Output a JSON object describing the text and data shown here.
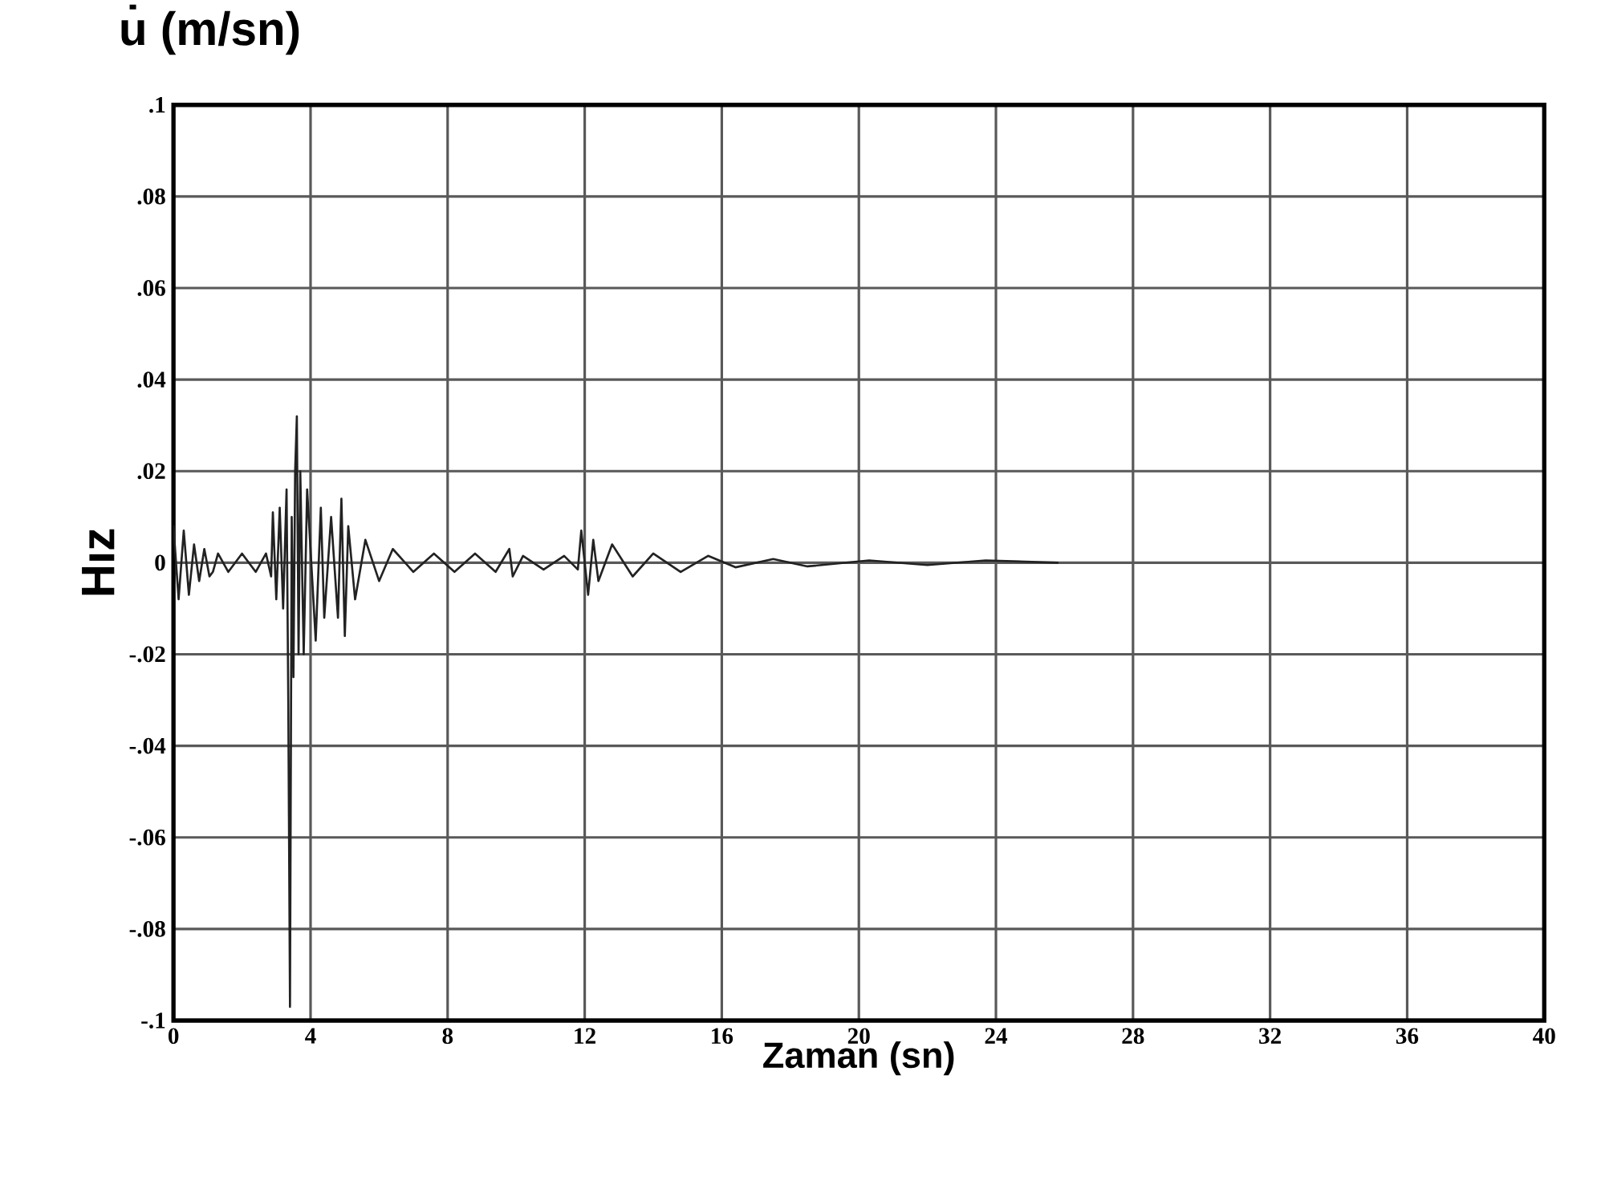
{
  "chart_data": {
    "type": "line",
    "title": "u̇ (m/sn)",
    "xlabel": "Zaman (sn)",
    "ylabel": "Hız",
    "xlim": [
      0,
      40
    ],
    "ylim": [
      -0.1,
      0.1
    ],
    "xticks": [
      0,
      4,
      8,
      12,
      16,
      20,
      24,
      28,
      32,
      36,
      40
    ],
    "yticks": [
      {
        "value": -0.1,
        "label": "-.1"
      },
      {
        "value": -0.08,
        "label": "-.08"
      },
      {
        "value": -0.06,
        "label": "-.06"
      },
      {
        "value": -0.04,
        "label": "-.04"
      },
      {
        "value": -0.02,
        "label": "-.02"
      },
      0,
      {
        "value": 0.02,
        "label": ".02"
      },
      {
        "value": 0.04,
        "label": ".04"
      },
      {
        "value": 0.06,
        "label": ".06"
      },
      {
        "value": 0.08,
        "label": ".08"
      },
      {
        "value": 0.1,
        "label": ".1"
      }
    ],
    "grid": true,
    "marker": "none",
    "line_style": "solid",
    "series": [
      {
        "color": "#222222",
        "x": [
          0,
          0.15,
          0.3,
          0.45,
          0.6,
          0.75,
          0.9,
          1.05,
          1.15,
          1.3,
          1.6,
          2.0,
          2.4,
          2.7,
          2.85,
          2.9,
          3.0,
          3.1,
          3.2,
          3.3,
          3.35,
          3.4,
          3.45,
          3.5,
          3.55,
          3.6,
          3.65,
          3.7,
          3.8,
          3.9,
          4.15,
          4.3,
          4.4,
          4.6,
          4.8,
          4.9,
          5.0,
          5.1,
          5.3,
          5.6,
          6.0,
          6.4,
          7.0,
          7.6,
          8.2,
          8.8,
          9.4,
          9.8,
          9.9,
          10.2,
          10.8,
          11.4,
          11.8,
          11.9,
          12.1,
          12.25,
          12.4,
          12.8,
          13.4,
          14.0,
          14.8,
          15.6,
          16.4,
          17.5,
          18.5,
          20.3,
          22.0,
          23.7,
          25.8
        ],
        "values": [
          0.008,
          -0.008,
          0.007,
          -0.007,
          0.004,
          -0.004,
          0.003,
          -0.003,
          -0.002,
          0.002,
          -0.002,
          0.002,
          -0.002,
          0.002,
          -0.003,
          0.011,
          -0.008,
          0.012,
          -0.01,
          0.016,
          -0.03,
          -0.097,
          0.01,
          -0.025,
          0.02,
          0.032,
          -0.02,
          0.02,
          -0.02,
          0.016,
          -0.017,
          0.012,
          -0.012,
          0.01,
          -0.012,
          0.014,
          -0.016,
          0.008,
          -0.008,
          0.005,
          -0.004,
          0.003,
          -0.002,
          0.002,
          -0.002,
          0.002,
          -0.002,
          0.003,
          -0.003,
          0.0015,
          -0.0015,
          0.0015,
          -0.0015,
          0.007,
          -0.007,
          0.005,
          -0.004,
          0.004,
          -0.003,
          0.002,
          -0.002,
          0.0015,
          -0.001,
          0.0008,
          -0.0008,
          0.0005,
          -0.0005,
          0.0005,
          0
        ]
      }
    ]
  }
}
